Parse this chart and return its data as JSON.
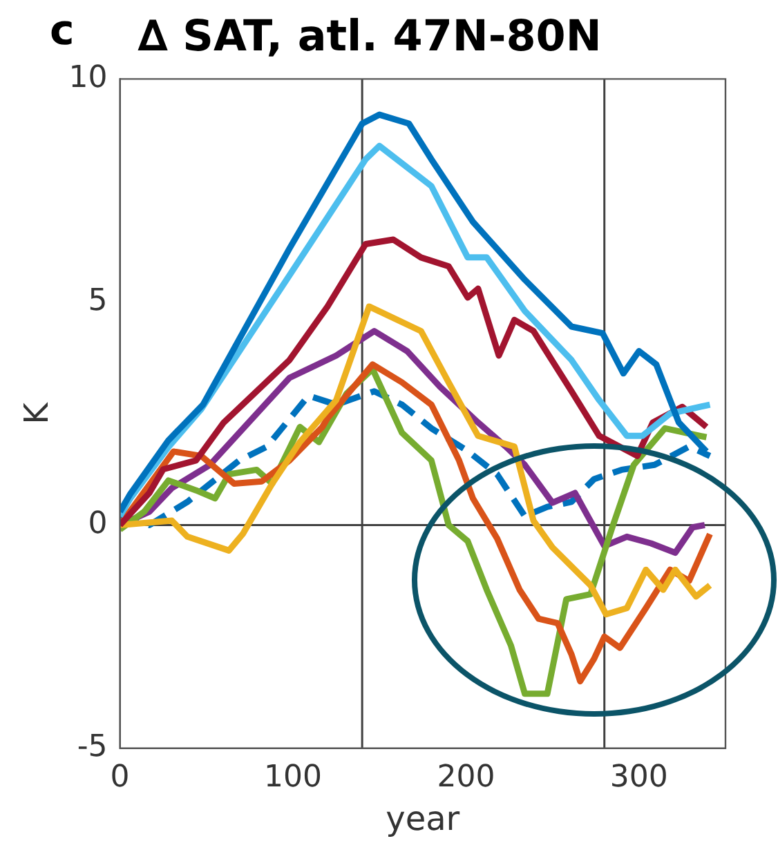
{
  "chart_data": {
    "type": "line",
    "title": "∆ SAT, atl. 47N-80N",
    "xlabel": "year",
    "ylabel": "K",
    "annotations": [
      "c"
    ],
    "xlim": [
      0,
      350
    ],
    "xticks": [
      0,
      100,
      200,
      300
    ],
    "ylim": [
      -5,
      10
    ],
    "yticks": [
      -5,
      0,
      5,
      10
    ],
    "grid": false,
    "legend": false,
    "marker": "none",
    "ref_lines": [
      {
        "axis": "x",
        "value": 140,
        "color": "#404040"
      },
      {
        "axis": "x",
        "value": 280,
        "color": "#404040"
      },
      {
        "axis": "y",
        "value": 0,
        "color": "#404040"
      }
    ],
    "series": [
      {
        "color": "#0072bd",
        "line_style": "solid",
        "x": [
          0,
          6,
          28,
          48,
          98,
          140,
          150,
          167,
          180,
          204,
          234,
          261,
          279,
          291,
          300,
          310,
          323,
          339
        ],
        "values": [
          0.3,
          0.7,
          1.9,
          2.7,
          6.2,
          9.0,
          9.2,
          9.0,
          8.2,
          6.8,
          5.5,
          4.45,
          4.3,
          3.4,
          3.9,
          3.6,
          2.3,
          1.65
        ]
      },
      {
        "color": "#4dbeee",
        "line_style": "solid",
        "x": [
          0,
          6,
          28,
          47,
          98,
          142,
          150,
          180,
          201,
          212,
          234,
          261,
          277,
          293,
          302,
          318,
          341
        ],
        "values": [
          0.2,
          0.6,
          1.75,
          2.6,
          5.6,
          8.2,
          8.5,
          7.6,
          6.0,
          6.0,
          4.8,
          3.7,
          2.8,
          2.0,
          2.0,
          2.5,
          2.7
        ]
      },
      {
        "color": "#a2142f",
        "line_style": "solid",
        "x": [
          0,
          17,
          25,
          44,
          60,
          98,
          120,
          142,
          158,
          174,
          190,
          201,
          207,
          219,
          228,
          239,
          261,
          277,
          299,
          308,
          325,
          339
        ],
        "values": [
          0,
          0.72,
          1.25,
          1.45,
          2.3,
          3.7,
          4.9,
          6.3,
          6.4,
          6.0,
          5.8,
          5.1,
          5.3,
          3.8,
          4.6,
          4.35,
          3.0,
          2.0,
          1.55,
          2.3,
          2.65,
          2.2
        ]
      },
      {
        "color": "#edb120",
        "line_style": "solid",
        "x": [
          0,
          30,
          39,
          63,
          71,
          88,
          104,
          125,
          144,
          174,
          190,
          207,
          228,
          239,
          250,
          272,
          281,
          293,
          304,
          314,
          321,
          333,
          341
        ],
        "values": [
          0,
          0.1,
          -0.26,
          -0.57,
          -0.2,
          0.93,
          1.86,
          2.8,
          4.9,
          4.35,
          3.2,
          2.0,
          1.76,
          0.1,
          -0.5,
          -1.35,
          -2.0,
          -1.86,
          -1.0,
          -1.45,
          -1.0,
          -1.6,
          -1.35
        ]
      },
      {
        "color": "#d95319",
        "line_style": "solid",
        "x": [
          0,
          31,
          47,
          66,
          82,
          98,
          117,
          120,
          146,
          163,
          180,
          196,
          204,
          218,
          231,
          242,
          253,
          261,
          266,
          274,
          280,
          289,
          304,
          318,
          329,
          341
        ],
        "values": [
          0,
          1.65,
          1.55,
          0.93,
          0.98,
          1.45,
          2.2,
          2.4,
          3.6,
          3.2,
          2.7,
          1.45,
          0.6,
          -0.3,
          -1.45,
          -2.1,
          -2.2,
          -2.9,
          -3.5,
          -3.0,
          -2.5,
          -2.75,
          -1.86,
          -1.0,
          -1.25,
          -0.2
        ]
      },
      {
        "color": "#77ac30",
        "line_style": "solid",
        "x": [
          0,
          14,
          28,
          44,
          55,
          63,
          79,
          88,
          104,
          115,
          131,
          146,
          163,
          180,
          190,
          201,
          212,
          226,
          234,
          247,
          258,
          272,
          285,
          297,
          315,
          339
        ],
        "values": [
          -0.1,
          0.3,
          1.0,
          0.78,
          0.6,
          1.14,
          1.24,
          0.93,
          2.2,
          1.86,
          2.95,
          3.5,
          2.07,
          1.45,
          0.0,
          -0.36,
          -1.45,
          -2.7,
          -3.78,
          -3.78,
          -1.66,
          -1.55,
          0.0,
          1.35,
          2.17,
          1.97
        ]
      },
      {
        "color": "#7e2f8e",
        "line_style": "solid",
        "x": [
          0,
          17,
          30,
          52,
          98,
          125,
          147,
          166,
          185,
          207,
          223,
          234,
          250,
          263,
          280,
          293,
          307,
          321,
          331,
          338
        ],
        "values": [
          0,
          0.3,
          0.83,
          1.35,
          3.3,
          3.8,
          4.35,
          3.9,
          3.1,
          2.3,
          1.76,
          1.35,
          0.5,
          0.72,
          -0.47,
          -0.26,
          -0.41,
          -0.62,
          -0.05,
          0.0
        ]
      },
      {
        "color": "#0072bd",
        "line_style": "dashed",
        "x": [
          0,
          17,
          39,
          69,
          85,
          109,
          125,
          147,
          163,
          180,
          201,
          218,
          234,
          247,
          261,
          274,
          290,
          309,
          329,
          341
        ],
        "values": [
          0.2,
          0.0,
          0.52,
          1.45,
          1.76,
          2.9,
          2.7,
          3.0,
          2.7,
          2.17,
          1.66,
          1.14,
          0.2,
          0.41,
          0.52,
          1.03,
          1.24,
          1.35,
          1.76,
          1.55
        ]
      }
    ]
  }
}
